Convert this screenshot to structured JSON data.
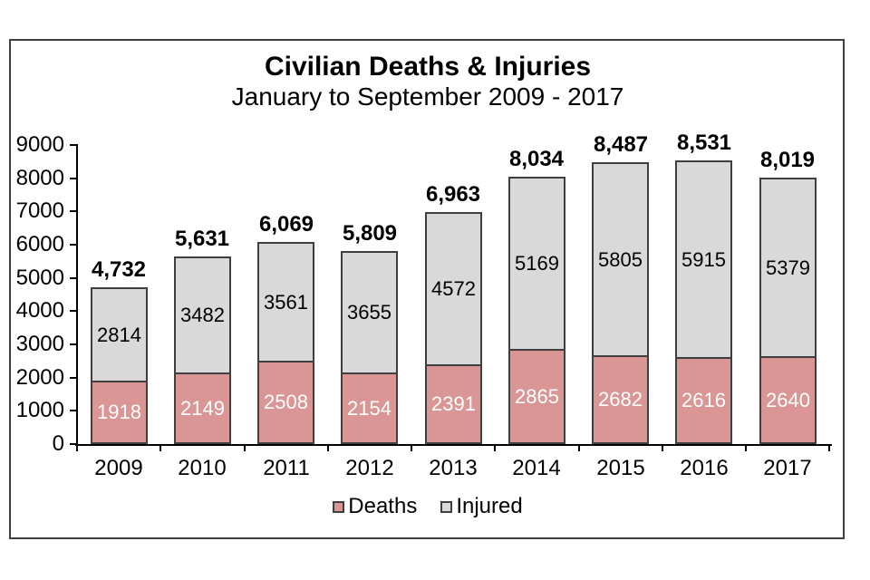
{
  "chart_data": {
    "type": "bar",
    "stacked": true,
    "title": "Civilian Deaths & Injuries",
    "subtitle": "January to September 2009 - 2017",
    "categories": [
      "2009",
      "2010",
      "2011",
      "2012",
      "2013",
      "2014",
      "2015",
      "2016",
      "2017"
    ],
    "series": [
      {
        "name": "Deaths",
        "values": [
          1918,
          2149,
          2508,
          2154,
          2391,
          2865,
          2682,
          2616,
          2640
        ],
        "color": "#d99694",
        "label_color": "#ffffff"
      },
      {
        "name": "Injured",
        "values": [
          2814,
          3482,
          3561,
          3655,
          4572,
          5169,
          5805,
          5915,
          5379
        ],
        "color": "#d9d9d9",
        "label_color": "#000000"
      }
    ],
    "totals": [
      "4,732",
      "5,631",
      "6,069",
      "5,809",
      "6,963",
      "8,034",
      "8,487",
      "8,531",
      "8,019"
    ],
    "y_axis": {
      "min": 0,
      "max": 9000,
      "step": 1000,
      "tick_labels": [
        "0",
        "1000",
        "2000",
        "3000",
        "4000",
        "5000",
        "6000",
        "7000",
        "8000",
        "9000"
      ]
    },
    "xlabel": "",
    "ylabel": "",
    "grid": false,
    "legend_position": "bottom",
    "legend": [
      {
        "label": "Deaths",
        "color": "#d99694"
      },
      {
        "label": "Injured",
        "color": "#d9d9d9"
      }
    ],
    "bar_border_color": "#3f3f3f",
    "axis_color": "#000000"
  }
}
